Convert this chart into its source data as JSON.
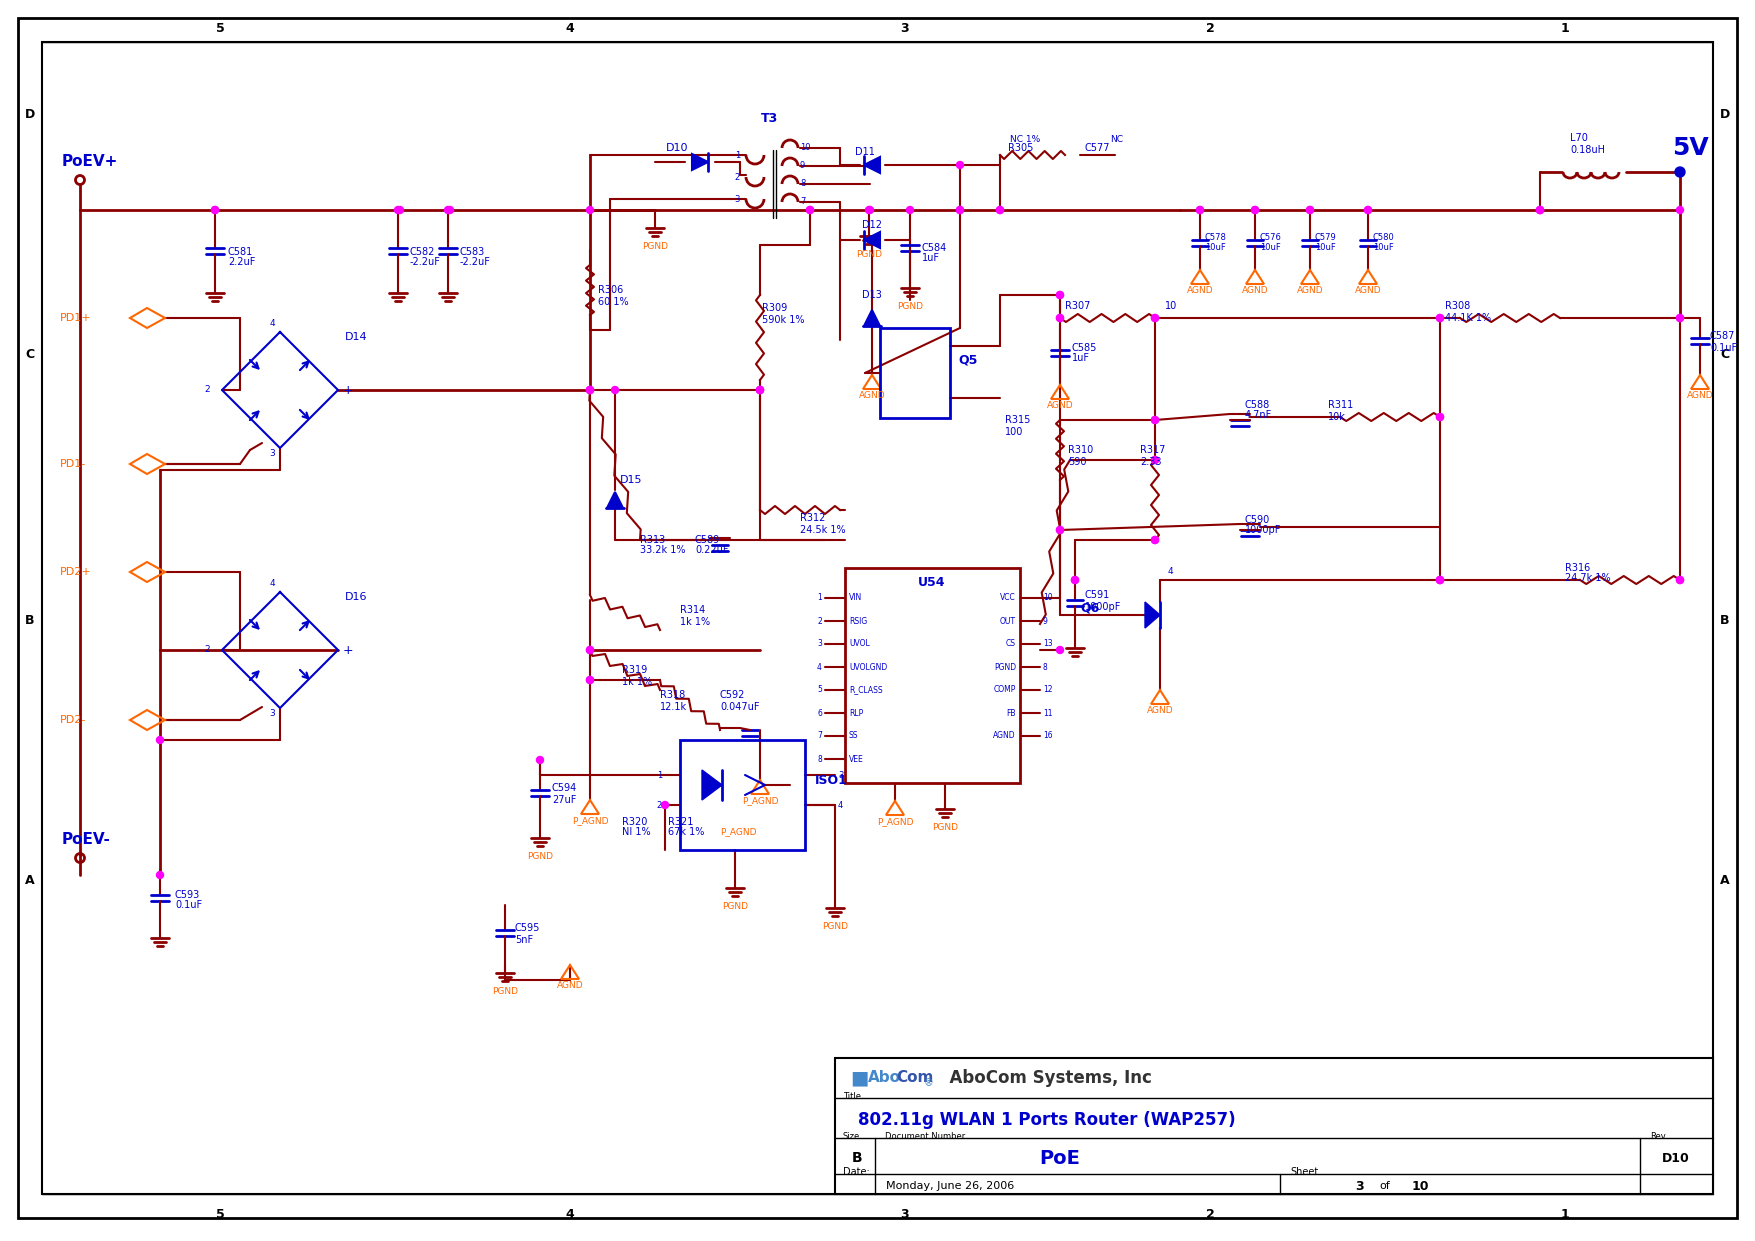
{
  "bg": "#ffffff",
  "border_color": "#000000",
  "dark_red": "#8B0000",
  "blue": "#0000CD",
  "orange": "#FF6600",
  "magenta": "#FF00FF",
  "title_block": {
    "company": "AboCom Systems, Inc",
    "title": "802.11g WLAN 1 Ports Router (WAP257)",
    "size": "B",
    "doc_number": "PoE",
    "rev": "D10",
    "date": "Monday, June 26, 2006",
    "sheet": "3",
    "of": "10"
  }
}
